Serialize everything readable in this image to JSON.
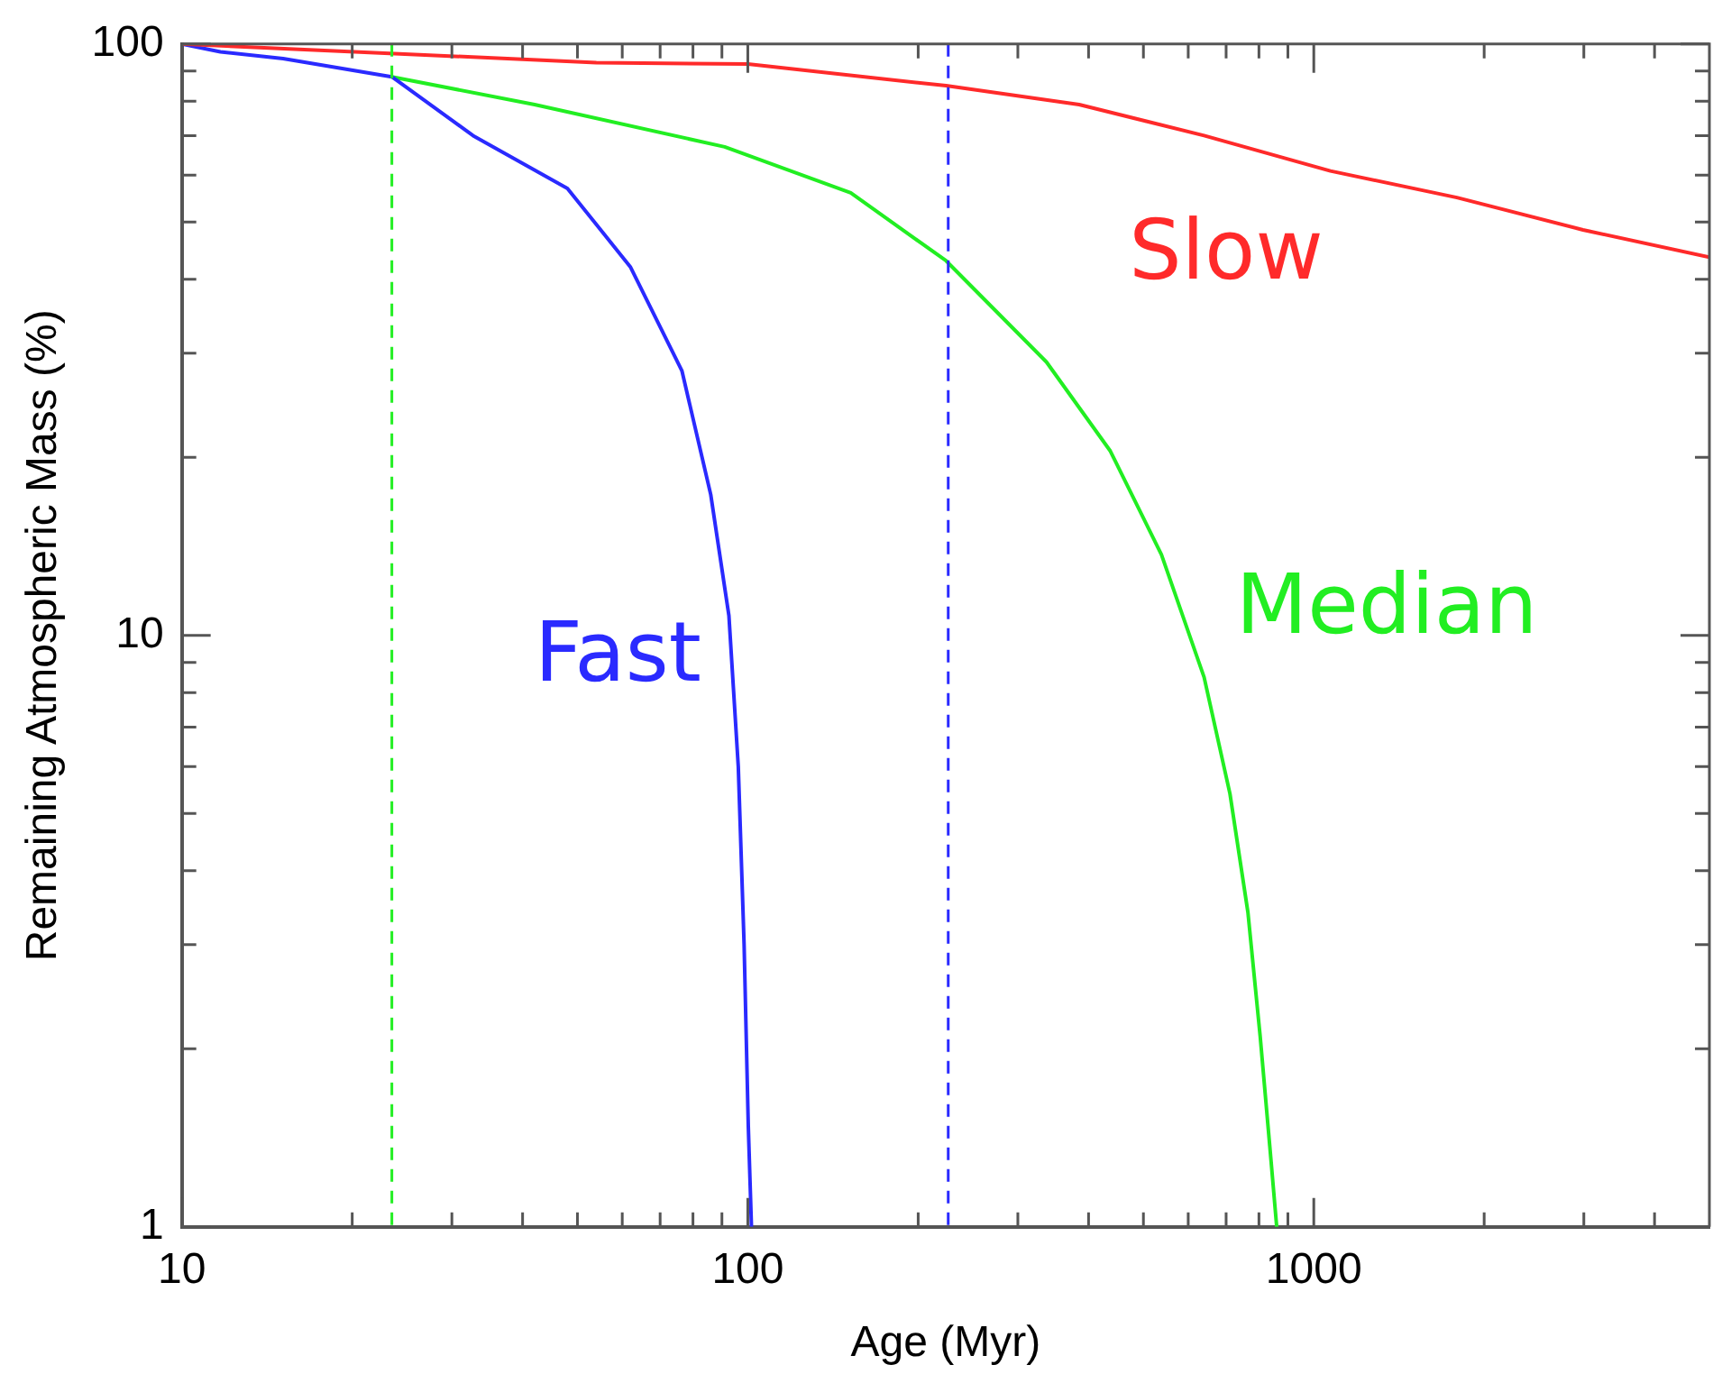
{
  "chart_data": {
    "type": "line",
    "xlabel": "Age (Myr)",
    "ylabel": "Remaining Atmospheric Mass (%)",
    "log": "xy",
    "grid": false,
    "legend": false,
    "marker": "none",
    "line_style": "solid",
    "xlim": [
      10,
      5000
    ],
    "ylim": [
      1,
      100
    ],
    "xticks": [
      10,
      {
        "value": 20,
        "label": null
      },
      {
        "value": 30,
        "label": null
      },
      {
        "value": 40,
        "label": null
      },
      {
        "value": 50,
        "label": null
      },
      {
        "value": 60,
        "label": null
      },
      {
        "value": 70,
        "label": null
      },
      {
        "value": 80,
        "label": null
      },
      {
        "value": 90,
        "label": null
      },
      100,
      {
        "value": 200,
        "label": null
      },
      {
        "value": 300,
        "label": null
      },
      {
        "value": 400,
        "label": null
      },
      {
        "value": 500,
        "label": null
      },
      {
        "value": 600,
        "label": null
      },
      {
        "value": 700,
        "label": null
      },
      {
        "value": 800,
        "label": null
      },
      {
        "value": 900,
        "label": null
      },
      1000,
      {
        "value": 2000,
        "label": null
      },
      {
        "value": 3000,
        "label": null
      },
      {
        "value": 4000,
        "label": null
      }
    ],
    "yticks": [
      1,
      {
        "value": 2,
        "label": null
      },
      {
        "value": 3,
        "label": null
      },
      {
        "value": 4,
        "label": null
      },
      {
        "value": 5,
        "label": null
      },
      {
        "value": 6,
        "label": null
      },
      {
        "value": 7,
        "label": null
      },
      {
        "value": 8,
        "label": null
      },
      {
        "value": 9,
        "label": null
      },
      10,
      {
        "value": 20,
        "label": null
      },
      {
        "value": 30,
        "label": null
      },
      {
        "value": 40,
        "label": null
      },
      {
        "value": 50,
        "label": null
      },
      {
        "value": 60,
        "label": null
      },
      {
        "value": 70,
        "label": null
      },
      {
        "value": 80,
        "label": null
      },
      {
        "value": 90,
        "label": null
      },
      100
    ],
    "series": [
      {
        "name": "Slow",
        "color": "#ff2a2a",
        "x": [
          10,
          54,
          100,
          224,
          385,
          640,
          1070,
          1790,
          2990,
          5000
        ],
        "values": [
          100,
          93,
          92.5,
          85,
          79,
          70,
          61,
          55,
          48.5,
          43.6
        ]
      },
      {
        "name": "Fast",
        "color": "#2a2aff",
        "x": [
          10,
          11.7,
          15.1,
          23.5,
          32.7,
          48,
          62,
          76.5,
          86,
          92.6,
          96.2,
          98.5,
          100.2,
          101.5
        ],
        "values": [
          100,
          97,
          94.5,
          88,
          70,
          57,
          42,
          28,
          17.3,
          10.8,
          6,
          3,
          1.48,
          1
        ]
      },
      {
        "name": "Median",
        "color": "#22ee22",
        "x": [
          23.5,
          42,
          91,
          152,
          224,
          337,
          437,
          538,
          640,
          711,
          765,
          804,
          840,
          860
        ],
        "values": [
          88,
          79,
          67,
          56,
          43,
          29,
          20.5,
          13.7,
          8.5,
          5.4,
          3.4,
          2.1,
          1.3,
          1
        ]
      }
    ],
    "ref_lines": [
      {
        "axis": "x",
        "value": 23.5,
        "color": "#22ee22",
        "line_style": "dashed"
      },
      {
        "axis": "x",
        "value": 226,
        "color": "#2a2aff",
        "line_style": "dashed"
      }
    ]
  }
}
